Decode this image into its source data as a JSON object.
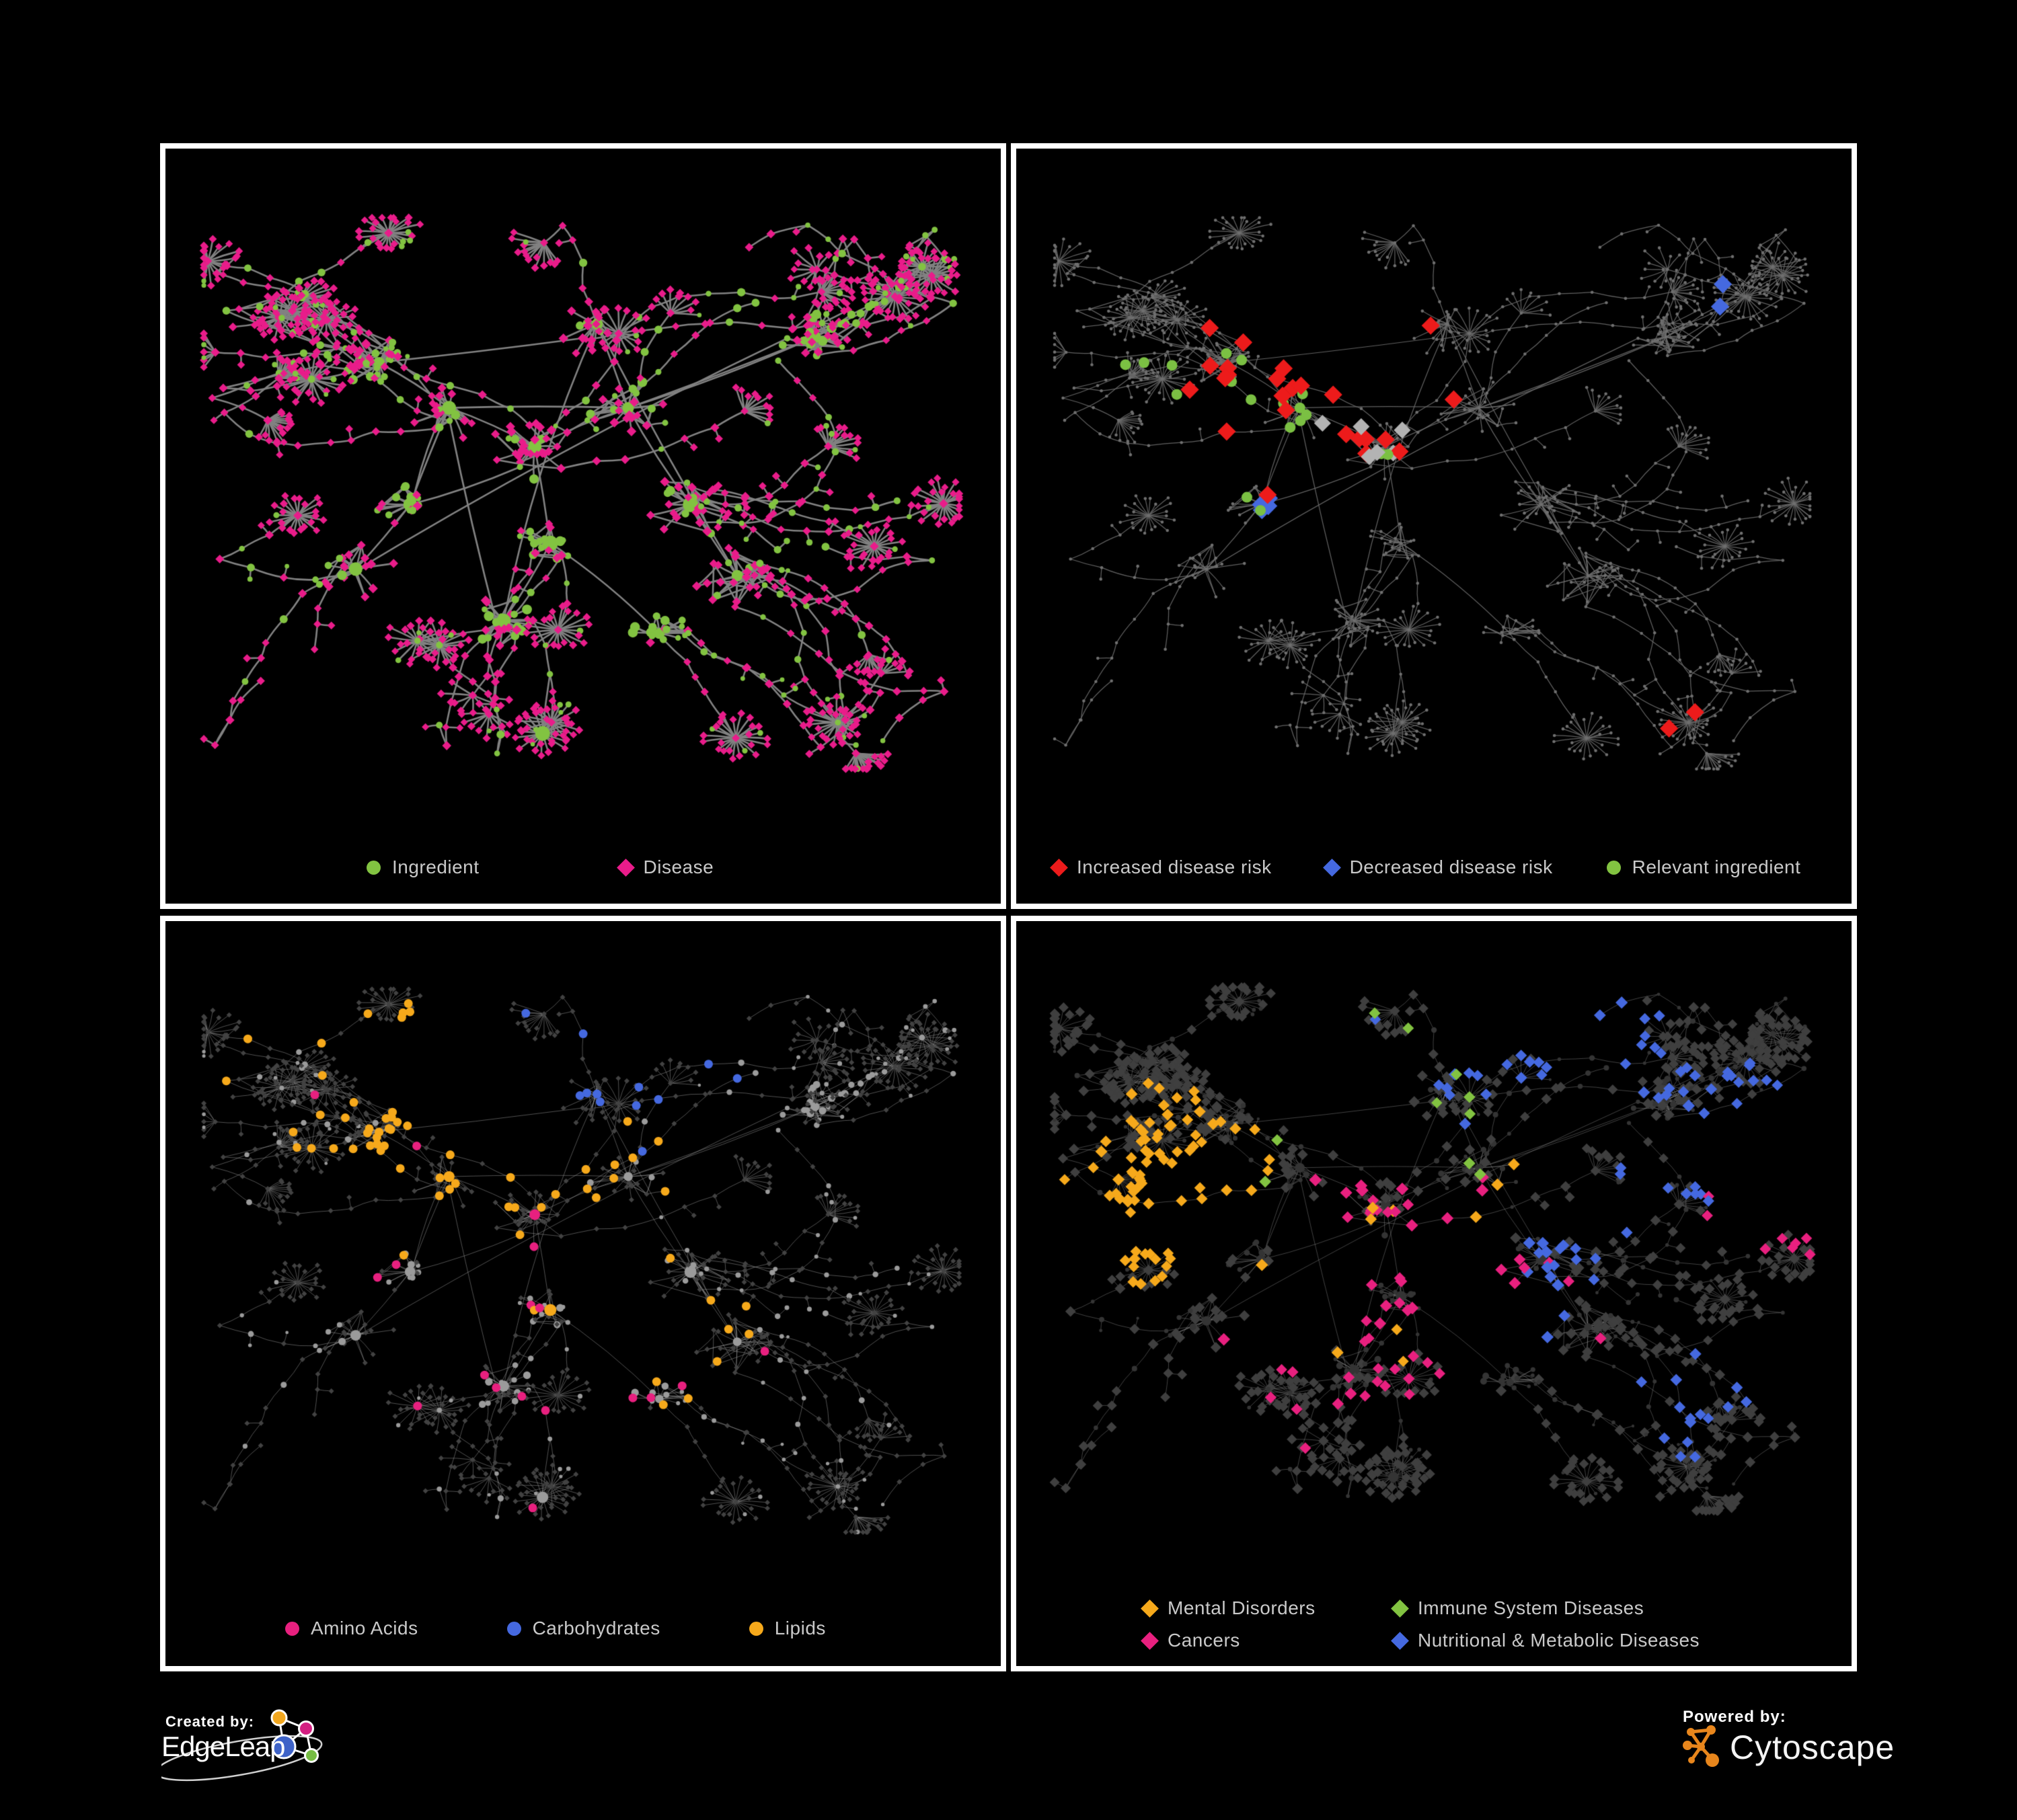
{
  "poster": {
    "background": "#000000",
    "panels": [
      {
        "id": "ingredient-disease",
        "legend": [
          {
            "shape": "circle",
            "color": "#82c341",
            "label": "Ingredient"
          },
          {
            "shape": "diamond",
            "color": "#e91c8a",
            "label": "Disease"
          }
        ]
      },
      {
        "id": "disease-risk",
        "legend": [
          {
            "shape": "diamond",
            "color": "#ed1b1b",
            "label": "Increased disease risk"
          },
          {
            "shape": "diamond",
            "color": "#4569e0",
            "label": "Decreased disease risk"
          },
          {
            "shape": "circle",
            "color": "#82c341",
            "label": "Relevant ingredient"
          }
        ]
      },
      {
        "id": "nutrient-classes",
        "legend": [
          {
            "shape": "circle",
            "color": "#e8207f",
            "label": "Amino Acids"
          },
          {
            "shape": "circle",
            "color": "#4569e0",
            "label": "Carbohydrates"
          },
          {
            "shape": "circle",
            "color": "#f6a91b",
            "label": "Lipids"
          }
        ]
      },
      {
        "id": "disease-classes",
        "legend": [
          {
            "shape": "diamond",
            "color": "#f6a91b",
            "label": "Mental Disorders"
          },
          {
            "shape": "diamond",
            "color": "#82c341",
            "label": "Immune System Diseases"
          },
          {
            "shape": "diamond",
            "color": "#e8207f",
            "label": "Cancers"
          },
          {
            "shape": "diamond",
            "color": "#4569e0",
            "label": "Nutritional & Metabolic Diseases"
          }
        ]
      }
    ],
    "footer": {
      "created_by": "Created by:",
      "edgeleap": "EdgeLeap",
      "powered_by": "Powered by:",
      "cytoscape": "Cytoscape"
    },
    "network": {
      "seed": 11,
      "chains": 52,
      "hub_positions": [
        [
          0.44,
          0.43
        ],
        [
          0.33,
          0.37
        ],
        [
          0.28,
          0.52
        ],
        [
          0.46,
          0.58
        ],
        [
          0.56,
          0.37
        ],
        [
          0.52,
          0.24
        ],
        [
          0.64,
          0.52
        ],
        [
          0.4,
          0.7
        ],
        [
          0.8,
          0.26
        ],
        [
          0.24,
          0.3
        ],
        [
          0.6,
          0.72
        ],
        [
          0.21,
          0.62
        ],
        [
          0.7,
          0.63
        ]
      ],
      "panel_styles": [
        {
          "scheme": "types",
          "edge": {
            "color": "#828282",
            "width": 2.6,
            "alpha": 1.0
          },
          "circle": {
            "color": "#82c341",
            "mul": 1.15,
            "add": 0.5
          },
          "diamond": {
            "color": "#e91c8a",
            "mul": 0.5,
            "add": 4.0
          }
        },
        {
          "scheme": "highlight",
          "edge": {
            "color": "#6a6a6a",
            "width": 1.25,
            "alpha": 0.9
          },
          "base": {
            "color": "#6f6f6f",
            "size": 2.3
          },
          "highlights": [
            {
              "shape": "diamond",
              "color": "#ed1b1b",
              "count": 24,
              "size": 13,
              "focus": [
                0.37,
                0.38
              ],
              "spread": 0.45
            },
            {
              "shape": "diamond",
              "color": "#ed1b1b",
              "count": 2,
              "size": 13,
              "focus": [
                0.8,
                0.82
              ],
              "spread": 0.15
            },
            {
              "shape": "diamond",
              "color": "#4569e0",
              "count": 4,
              "size": 13,
              "focus": [
                0.3,
                0.47
              ],
              "spread": 0.12
            },
            {
              "shape": "diamond",
              "color": "#4569e0",
              "count": 2,
              "size": 13,
              "focus": [
                0.86,
                0.2
              ],
              "spread": 0.06
            },
            {
              "shape": "diamond",
              "color": "#b3b3b3",
              "count": 6,
              "size": 12,
              "focus": [
                0.4,
                0.42
              ],
              "spread": 0.6
            },
            {
              "shape": "circle",
              "color": "#7bc043",
              "count": 18,
              "size": 8,
              "focus": [
                0.3,
                0.4
              ],
              "spread": 0.7
            }
          ]
        },
        {
          "scheme": "classes-circle",
          "edge": {
            "color": "#a0a0a0",
            "width": 1.0,
            "alpha": 0.5
          },
          "circle": {
            "color": "#9b9b9b",
            "mul": 0.95,
            "add": 0
          },
          "diamond": {
            "color": "#424242",
            "mul": 0.0,
            "add": 3.8
          },
          "classes": [
            {
              "color": "#e8207f",
              "count": 18,
              "focus": [
                0.45,
                0.55
              ],
              "spread": 2.5
            },
            {
              "color": "#4569e0",
              "count": 12,
              "focus": [
                0.52,
                0.14
              ],
              "spread": 0.1
            },
            {
              "color": "#f6a91b",
              "count": 58,
              "focus": [
                0.4,
                0.28
              ],
              "spread": 0.22
            },
            {
              "color": "#f6a91b",
              "count": 8,
              "focus": [
                0.62,
                0.62
              ],
              "spread": 0.06
            }
          ]
        },
        {
          "scheme": "classes-diamond",
          "edge": {
            "color": "#989898",
            "width": 0.95,
            "alpha": 0.45
          },
          "circle": {
            "color": "#343434",
            "mul": 0.85,
            "add": 0
          },
          "diamond": {
            "color": "#3f3f3f",
            "mul": 0.35,
            "add": 6.0
          },
          "classes": [
            {
              "color": "#f6a91b",
              "count": 80,
              "focus": [
                0.16,
                0.42
              ],
              "spread": 0.13
            },
            {
              "color": "#f6a91b",
              "count": 10,
              "focus": [
                0.5,
                0.5
              ],
              "spread": 1.8
            },
            {
              "color": "#e8207f",
              "count": 45,
              "focus": [
                0.47,
                0.55
              ],
              "spread": 0.14
            },
            {
              "color": "#e8207f",
              "count": 8,
              "focus": [
                0.93,
                0.4
              ],
              "spread": 0.07
            },
            {
              "color": "#e8207f",
              "count": 10,
              "focus": [
                0.5,
                0.6
              ],
              "spread": 1.5
            },
            {
              "color": "#4569e0",
              "count": 25,
              "focus": [
                0.62,
                0.12
              ],
              "spread": 0.18
            },
            {
              "color": "#4569e0",
              "count": 30,
              "focus": [
                0.85,
                0.35
              ],
              "spread": 0.22
            },
            {
              "color": "#4569e0",
              "count": 18,
              "focus": [
                0.63,
                0.55
              ],
              "spread": 0.08
            },
            {
              "color": "#4569e0",
              "count": 15,
              "focus": [
                0.8,
                0.75
              ],
              "spread": 0.15
            },
            {
              "color": "#82c341",
              "count": 10,
              "focus": [
                0.5,
                0.35
              ],
              "spread": 1.2
            }
          ]
        }
      ]
    }
  }
}
